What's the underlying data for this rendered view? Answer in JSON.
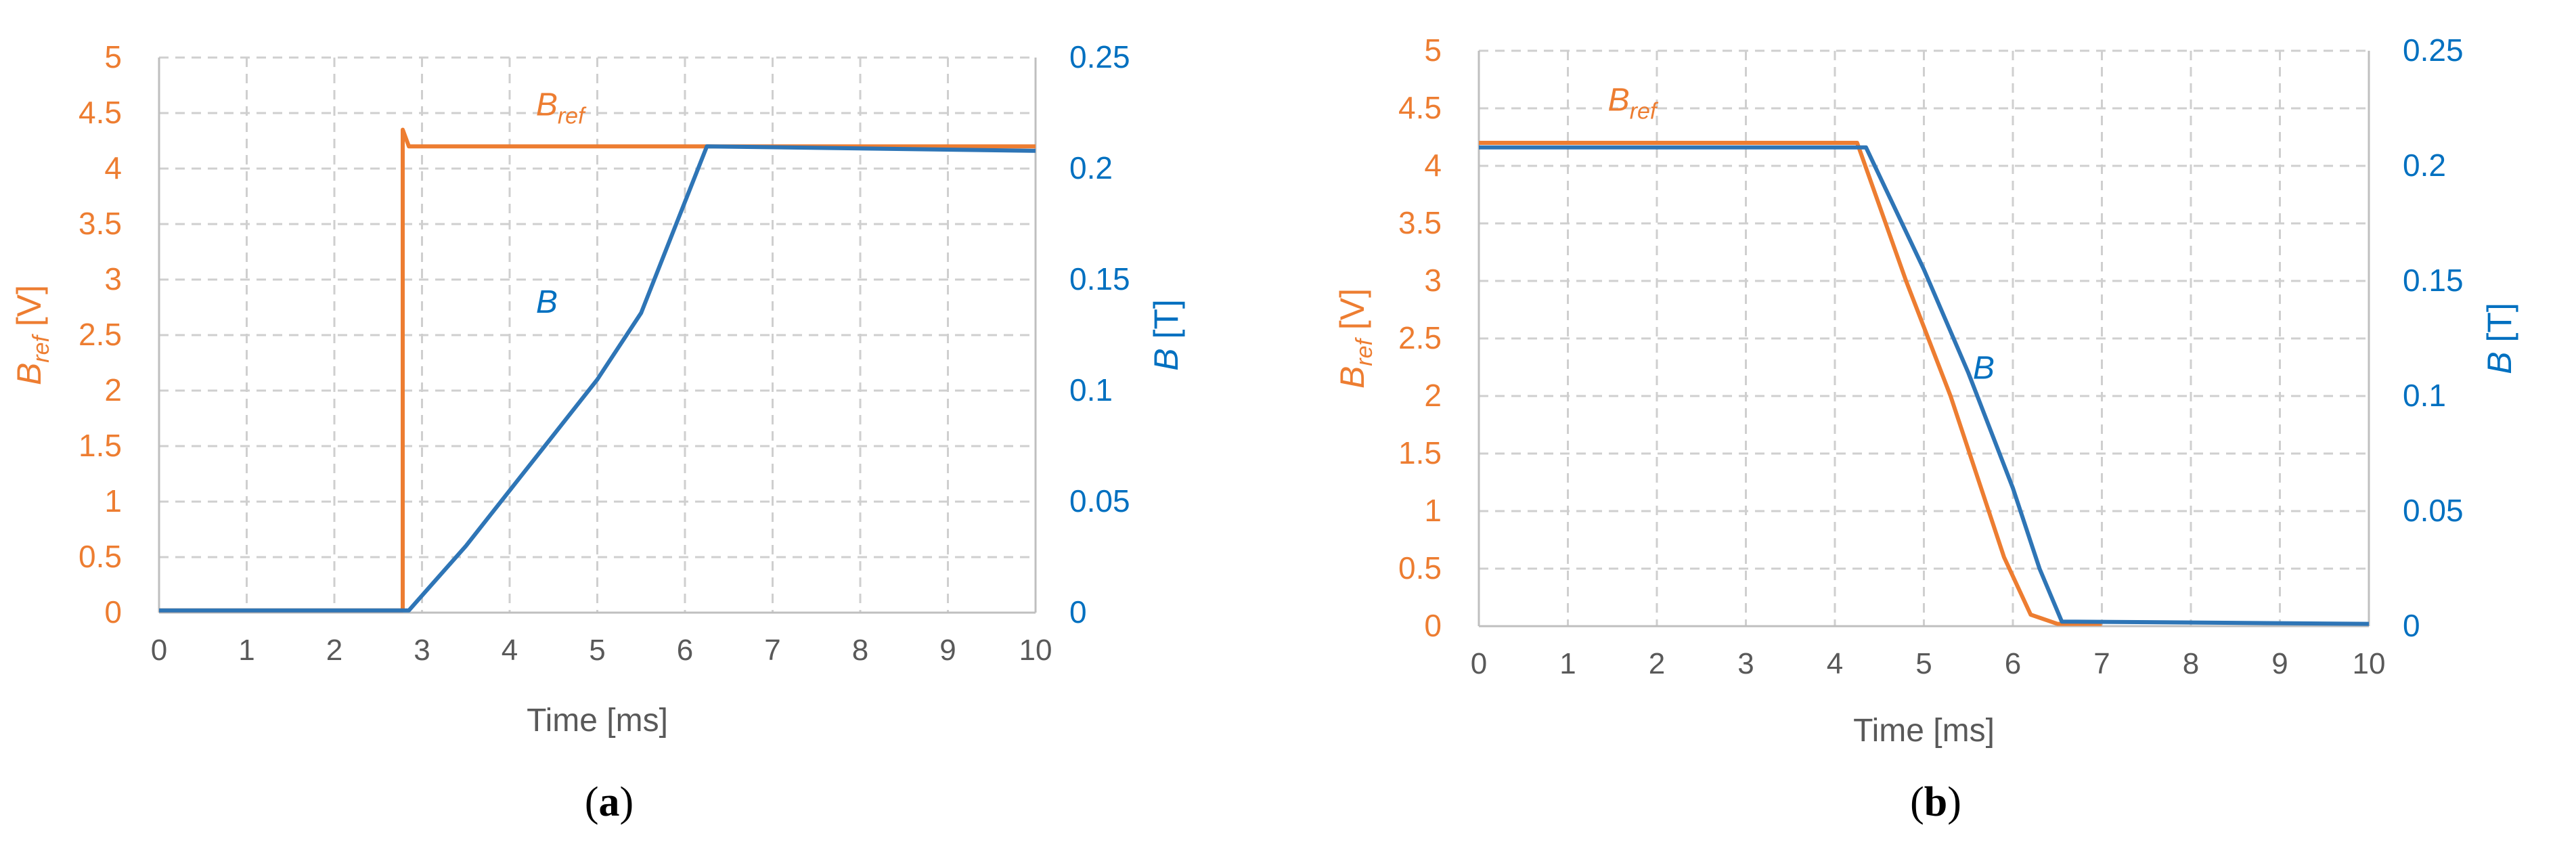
{
  "chart_data": [
    {
      "type": "line",
      "panel": "(a)",
      "panel_letter": "a",
      "xlabel": "Time [ms]",
      "xlim": [
        0,
        10
      ],
      "x_ticks": [
        "0",
        "1",
        "2",
        "3",
        "4",
        "5",
        "6",
        "7",
        "8",
        "9",
        "10"
      ],
      "y_left": {
        "label_main": "B",
        "label_sub": "ref",
        "label_unit": " [V]",
        "lim": [
          0,
          5
        ],
        "ticks": [
          "0",
          "0.5",
          "1",
          "1.5",
          "2",
          "2.5",
          "3",
          "3.5",
          "4",
          "4.5",
          "5"
        ],
        "color": "#ED7D31"
      },
      "y_right": {
        "label_main": "B",
        "label_unit": " [T]",
        "lim": [
          0,
          0.25
        ],
        "ticks": [
          "0",
          "0.05",
          "0.1",
          "0.15",
          "0.2",
          "0.25"
        ],
        "color": "#0070C0"
      },
      "grid": true,
      "series": [
        {
          "name": "Bref",
          "axis": "left",
          "color": "#ED7D31",
          "x": [
            0,
            2.78,
            2.78,
            2.85,
            10
          ],
          "y": [
            0.02,
            0.02,
            4.35,
            4.2,
            4.2
          ]
        },
        {
          "name": "B",
          "axis": "right",
          "color": "#2E75B6",
          "x": [
            0,
            2.85,
            3.5,
            4.0,
            4.5,
            5.0,
            5.5,
            6.0,
            6.25,
            10
          ],
          "y": [
            0.001,
            0.001,
            0.03,
            0.055,
            0.08,
            0.105,
            0.135,
            0.185,
            0.21,
            0.208
          ]
        }
      ],
      "annotations": [
        {
          "main": "B",
          "sub": "ref",
          "color": "#ED7D31",
          "x": 4.3,
          "y": 4.48,
          "axis": "left"
        },
        {
          "main": "B",
          "sub": "",
          "color": "#0070C0",
          "x": 4.3,
          "y": 2.7,
          "axis": "left"
        }
      ]
    },
    {
      "type": "line",
      "panel": "(b)",
      "panel_letter": "b",
      "xlabel": "Time [ms]",
      "xlim": [
        0,
        10
      ],
      "x_ticks": [
        "0",
        "1",
        "2",
        "3",
        "4",
        "5",
        "6",
        "7",
        "8",
        "9",
        "10"
      ],
      "y_left": {
        "label_main": "B",
        "label_sub": "ref",
        "label_unit": " [V]",
        "lim": [
          0,
          5
        ],
        "ticks": [
          "0",
          "0.5",
          "1",
          "1.5",
          "2",
          "2.5",
          "3",
          "3.5",
          "4",
          "4.5",
          "5"
        ],
        "color": "#ED7D31"
      },
      "y_right": {
        "label_main": "B",
        "label_unit": " [T]",
        "lim": [
          0,
          0.25
        ],
        "ticks": [
          "0",
          "0.05",
          "0.1",
          "0.15",
          "0.2",
          "0.25"
        ],
        "color": "#0070C0"
      },
      "grid": true,
      "series": [
        {
          "name": "Bref",
          "axis": "left",
          "color": "#ED7D31",
          "x": [
            0,
            4.25,
            4.8,
            5.3,
            5.9,
            6.2,
            6.5,
            7.0
          ],
          "y": [
            4.2,
            4.2,
            3.0,
            2.0,
            0.6,
            0.1,
            0.02,
            0.02
          ]
        },
        {
          "name": "B",
          "axis": "right",
          "color": "#2E75B6",
          "x": [
            0,
            4.35,
            5.0,
            5.5,
            6.0,
            6.3,
            6.55,
            10
          ],
          "y": [
            0.208,
            0.208,
            0.155,
            0.11,
            0.06,
            0.025,
            0.002,
            0.001
          ]
        }
      ],
      "annotations": [
        {
          "main": "B",
          "sub": "ref",
          "color": "#ED7D31",
          "x": 1.45,
          "y": 4.48,
          "axis": "left"
        },
        {
          "main": "B",
          "sub": "",
          "color": "#0070C0",
          "x": 5.55,
          "y": 2.15,
          "axis": "left"
        }
      ]
    }
  ]
}
